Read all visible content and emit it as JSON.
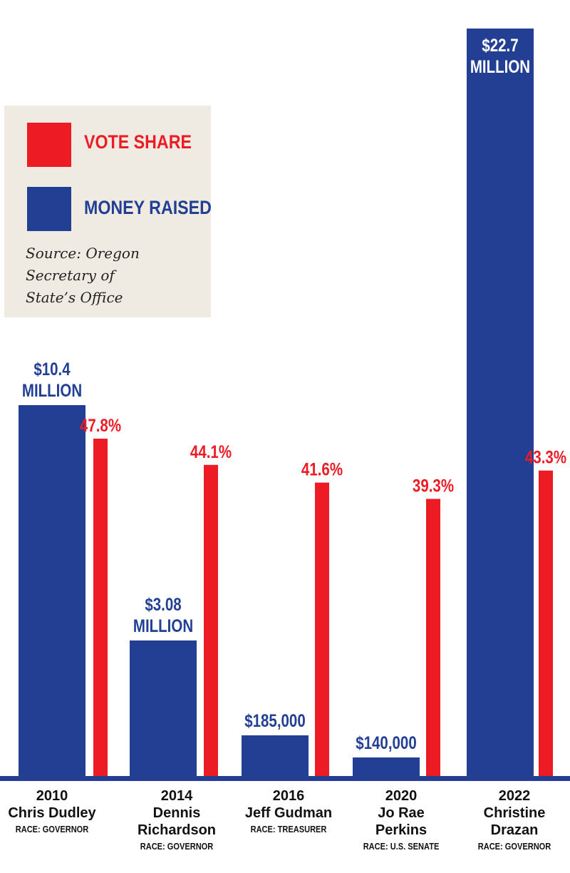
{
  "legend": {
    "vote_label": "VOTE SHARE",
    "money_label": "MONEY RAISED",
    "source": "Source: Oregon\nSecretary of\nState’s Office"
  },
  "colors": {
    "vote": "#ed1c24",
    "money": "#223f94",
    "baseline": "#223f94",
    "legend_bg": "#efebe2"
  },
  "chart_data": {
    "type": "bar",
    "categories": [
      {
        "year": "2010",
        "name": "Chris Dudley",
        "race": "RACE: GOVERNOR"
      },
      {
        "year": "2014",
        "name": "Dennis\nRichardson",
        "race": "RACE: GOVERNOR"
      },
      {
        "year": "2016",
        "name": "Jeff Gudman",
        "race": "RACE: TREASURER"
      },
      {
        "year": "2020",
        "name": "Jo Rae\nPerkins",
        "race": "RACE: U.S. SENATE"
      },
      {
        "year": "2022",
        "name": "Christine\nDrazan",
        "race": "RACE: GOVERNOR"
      }
    ],
    "series": [
      {
        "name": "MONEY RAISED",
        "values": [
          10400000,
          3080000,
          185000,
          140000,
          22700000
        ],
        "labels": [
          "$10.4\nMILLION",
          "$3.08\nMILLION",
          "$185,000",
          "$140,000",
          "$22.7\nMILLION"
        ]
      },
      {
        "name": "VOTE SHARE",
        "values": [
          47.8,
          44.1,
          41.6,
          39.3,
          43.3
        ],
        "labels": [
          "47.8%",
          "44.1%",
          "41.6%",
          "39.3%",
          "43.3%"
        ]
      }
    ]
  }
}
